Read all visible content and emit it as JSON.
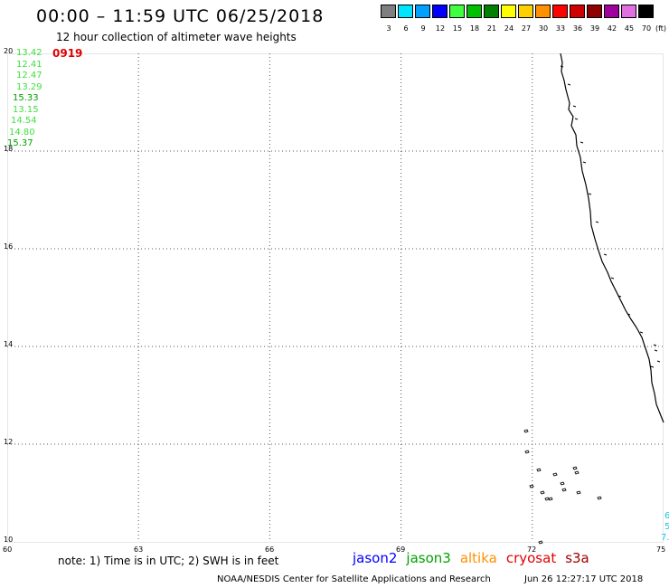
{
  "header": {
    "title": "00:00 – 11:59 UTC 06/25/2018",
    "subtitle": "12 hour collection of altimeter wave heights"
  },
  "color_scale": {
    "unit": "(ft)",
    "bins": [
      {
        "label": "3",
        "color": "#7f7f7f"
      },
      {
        "label": "6",
        "color": "#00e5ff"
      },
      {
        "label": "9",
        "color": "#00a0ff"
      },
      {
        "label": "12",
        "color": "#0000ff"
      },
      {
        "label": "15",
        "color": "#40ff40"
      },
      {
        "label": "18",
        "color": "#00c000"
      },
      {
        "label": "21",
        "color": "#008000"
      },
      {
        "label": "24",
        "color": "#ffff00"
      },
      {
        "label": "27",
        "color": "#ffd000"
      },
      {
        "label": "30",
        "color": "#ff9000"
      },
      {
        "label": "33",
        "color": "#ff0000"
      },
      {
        "label": "36",
        "color": "#d00000"
      },
      {
        "label": "39",
        "color": "#900000"
      },
      {
        "label": "42",
        "color": "#a000a0"
      },
      {
        "label": "45",
        "color": "#e070e0"
      },
      {
        "label": "70",
        "color": "#000000"
      }
    ]
  },
  "map": {
    "lat_labels": [
      "20",
      "18",
      "16",
      "14",
      "12",
      "10"
    ],
    "lon_labels": [
      "60",
      "63",
      "66",
      "69",
      "72",
      "75"
    ],
    "track_id": "0919",
    "wave_heights": [
      {
        "value": "13.42",
        "color": "#40e040"
      },
      {
        "value": "12.41",
        "color": "#40e040"
      },
      {
        "value": "12.47",
        "color": "#40e040"
      },
      {
        "value": "13.29",
        "color": "#40e040"
      },
      {
        "value": "15.33",
        "color": "#00a000"
      },
      {
        "value": "13.15",
        "color": "#40e040"
      },
      {
        "value": "14.54",
        "color": "#40e040"
      },
      {
        "value": "14.80",
        "color": "#40e040"
      },
      {
        "value": "15.37",
        "color": "#00a000"
      }
    ],
    "edge_values": [
      "6",
      "5",
      "7."
    ]
  },
  "note": "note: 1) Time is in UTC; 2) SWH is in feet",
  "missions": [
    {
      "name": "jason2",
      "color": "#0000ff"
    },
    {
      "name": "jason3",
      "color": "#00a000"
    },
    {
      "name": "altika",
      "color": "#ff9000"
    },
    {
      "name": "cryosat",
      "color": "#e00000"
    },
    {
      "name": "s3a",
      "color": "#a00000"
    }
  ],
  "footer": {
    "credit": "NOAA/NESDIS Center for Satellite Applications and Research",
    "timestamp": "Jun 26 12:27:17 UTC 2018"
  }
}
